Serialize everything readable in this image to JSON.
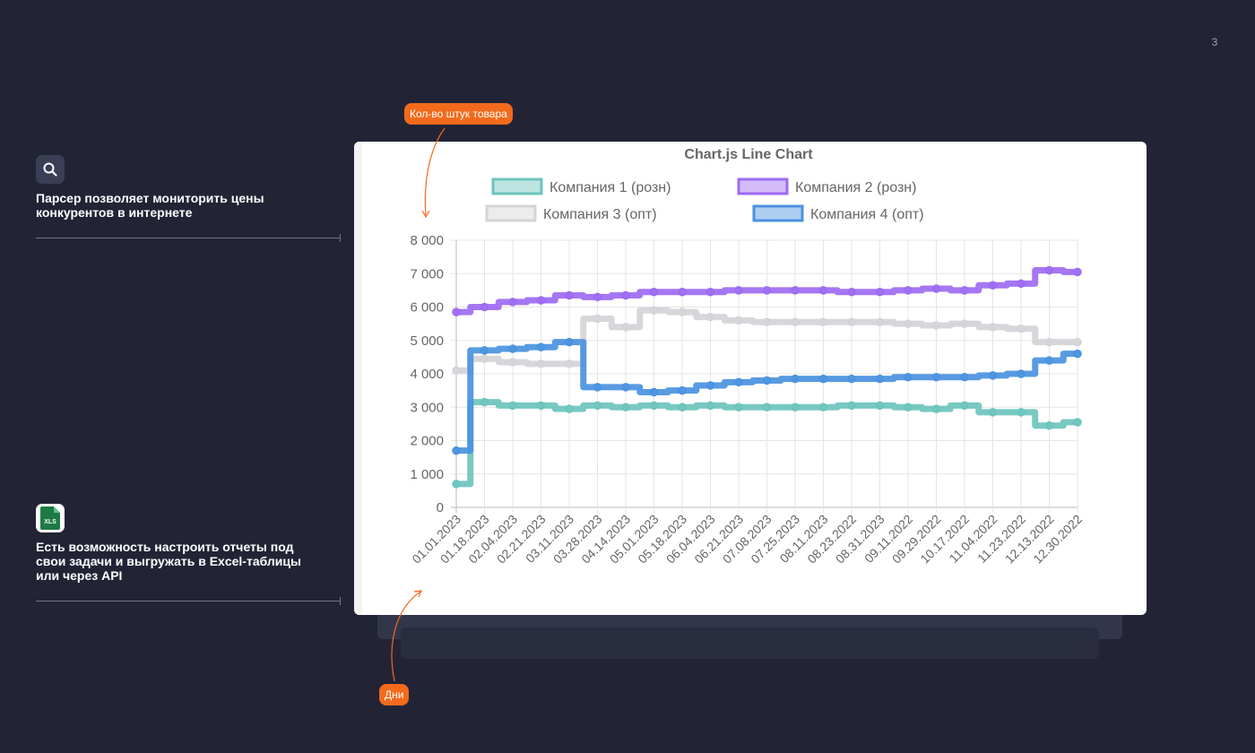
{
  "page_number": "3",
  "features": [
    {
      "icon": "search-icon",
      "text": "Парсер позволяет мониторить цены конкурентов в интернете"
    },
    {
      "icon": "xls-file-icon",
      "icon_label": "XLS",
      "text": "Есть возможность настроить отчеты под свои задачи и выгружать в Excel-таблицы или через API"
    }
  ],
  "callouts": {
    "y_axis": "Кол-во штук товара",
    "x_axis": "Дни"
  },
  "colors": {
    "background": "#222436",
    "accent": "#f26b1d",
    "series": [
      "#6cc4bd",
      "#9d6bf2",
      "#d4d4d8",
      "#4a92e0"
    ]
  },
  "chart_data": {
    "type": "line",
    "title": "Chart.js Line Chart",
    "legend_position": "top",
    "grid": true,
    "ylim": [
      0,
      8000
    ],
    "y_ticks": [
      "0",
      "1 000",
      "2 000",
      "3 000",
      "4 000",
      "5 000",
      "6 000",
      "7 000",
      "8 000"
    ],
    "categories": [
      "01.01.2023",
      "01.18.2023",
      "02.04.2023",
      "02.21.2023",
      "03.11.2023",
      "03.28.2023",
      "04.14.2023",
      "05.01.2023",
      "05.18.2023",
      "06.04.2023",
      "06.21.2023",
      "07.08.2023",
      "07.25.2023",
      "08.11.2023",
      "08.23.2022",
      "08.31.2023",
      "09.11.2022",
      "09.29.2022",
      "10.17.2022",
      "11.04.2022",
      "11.23.2022",
      "12.13.2022",
      "12.30.2022"
    ],
    "series": [
      {
        "name": "Компания 1 (розн)",
        "values": [
          700,
          3150,
          3050,
          3050,
          2950,
          3050,
          3000,
          3050,
          3000,
          3050,
          3000,
          3000,
          3000,
          3000,
          3050,
          3050,
          3000,
          2950,
          3050,
          2850,
          2850,
          2450,
          2550
        ]
      },
      {
        "name": "Компания 2 (розн)",
        "values": [
          5850,
          6000,
          6150,
          6200,
          6350,
          6300,
          6350,
          6450,
          6450,
          6450,
          6500,
          6500,
          6500,
          6500,
          6450,
          6450,
          6500,
          6550,
          6500,
          6650,
          6700,
          7100,
          7050
        ]
      },
      {
        "name": "Компания 3 (опт)",
        "values": [
          4100,
          4450,
          4350,
          4300,
          4300,
          5650,
          5400,
          5900,
          5850,
          5700,
          5600,
          5550,
          5550,
          5550,
          5550,
          5550,
          5500,
          5450,
          5500,
          5400,
          5350,
          4950,
          4950
        ]
      },
      {
        "name": "Компания 4 (опт)",
        "values": [
          1700,
          4700,
          4750,
          4800,
          4950,
          3600,
          3600,
          3450,
          3500,
          3650,
          3750,
          3800,
          3850,
          3850,
          3850,
          3850,
          3900,
          3900,
          3900,
          3950,
          4000,
          4400,
          4600
        ]
      }
    ]
  }
}
